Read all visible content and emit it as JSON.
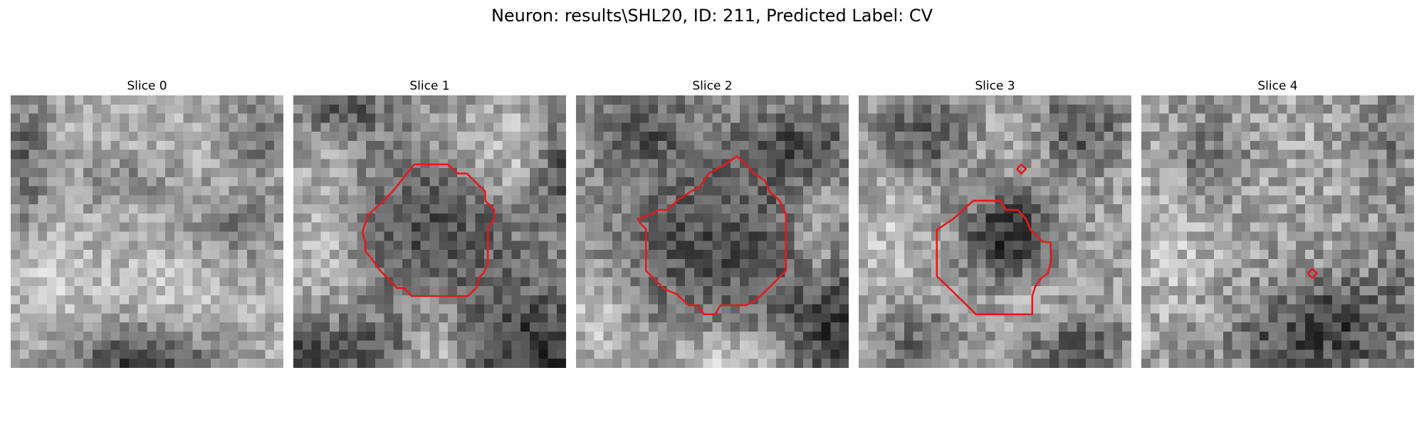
{
  "figure": {
    "title": "Neuron: results\\SHL20, ID: 211, Predicted Label: CV",
    "contour_color": "#e41a1c"
  },
  "panels": [
    {
      "title": "Slice 0"
    },
    {
      "title": "Slice 1"
    },
    {
      "title": "Slice 2"
    },
    {
      "title": "Slice 3"
    },
    {
      "title": "Slice 4"
    }
  ]
}
